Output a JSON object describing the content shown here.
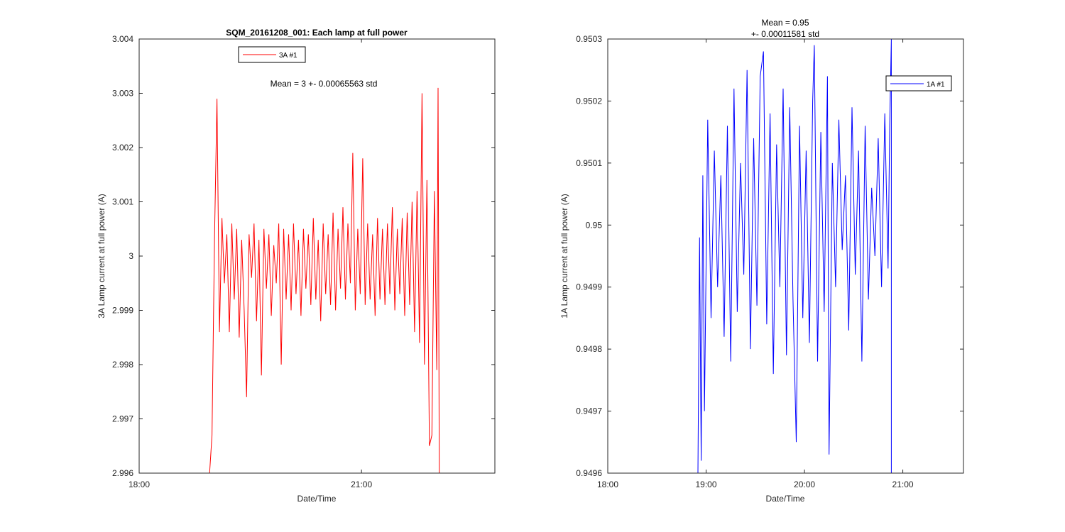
{
  "chart_data": [
    {
      "type": "line",
      "title": "SQM_20161208_001: Each lamp at full power",
      "xlabel": "Date/Time",
      "ylabel": "3A Lamp current at full power (A)",
      "xlim": [
        "18:00",
        "22:48"
      ],
      "ylim": [
        2.996,
        3.004
      ],
      "xticks": [
        "18:00",
        "21:00"
      ],
      "yticks": [
        "2.996",
        "2.997",
        "2.998",
        "2.999",
        "3",
        "3.001",
        "3.002",
        "3.003",
        "3.004"
      ],
      "annotation": "Mean = 3 +- 0.00065563 std",
      "legend_position": "top-left",
      "grid": false,
      "series": [
        {
          "name": "3A #1",
          "color": "#ff0000",
          "points": [
            [
              "18:57",
              2.996
            ],
            [
              "18:59",
              2.9967
            ],
            [
              "19:01",
              3.0003
            ],
            [
              "19:03",
              3.0029
            ],
            [
              "19:05",
              2.9986
            ],
            [
              "19:07",
              3.0007
            ],
            [
              "19:09",
              2.9995
            ],
            [
              "19:11",
              3.0004
            ],
            [
              "19:13",
              2.9986
            ],
            [
              "19:15",
              3.0006
            ],
            [
              "19:17",
              2.9992
            ],
            [
              "19:19",
              3.0005
            ],
            [
              "19:21",
              2.9985
            ],
            [
              "19:23",
              3.0003
            ],
            [
              "19:25",
              2.999
            ],
            [
              "19:27",
              2.9974
            ],
            [
              "19:29",
              3.0004
            ],
            [
              "19:31",
              2.9996
            ],
            [
              "19:33",
              3.0006
            ],
            [
              "19:35",
              2.9988
            ],
            [
              "19:37",
              3.0003
            ],
            [
              "19:39",
              2.9978
            ],
            [
              "19:41",
              3.0005
            ],
            [
              "19:43",
              2.9994
            ],
            [
              "19:45",
              3.0004
            ],
            [
              "19:47",
              2.9989
            ],
            [
              "19:49",
              3.0002
            ],
            [
              "19:51",
              2.9995
            ],
            [
              "19:53",
              3.0006
            ],
            [
              "19:55",
              2.998
            ],
            [
              "19:57",
              3.0005
            ],
            [
              "19:59",
              2.9992
            ],
            [
              "20:01",
              3.0004
            ],
            [
              "20:03",
              2.999
            ],
            [
              "20:05",
              3.0006
            ],
            [
              "20:07",
              2.9993
            ],
            [
              "20:09",
              3.0003
            ],
            [
              "20:11",
              2.9989
            ],
            [
              "20:13",
              3.0005
            ],
            [
              "20:15",
              2.9994
            ],
            [
              "20:17",
              3.0004
            ],
            [
              "20:19",
              2.9991
            ],
            [
              "20:21",
              3.0007
            ],
            [
              "20:23",
              2.9992
            ],
            [
              "20:25",
              3.0003
            ],
            [
              "20:27",
              2.9988
            ],
            [
              "20:29",
              3.0006
            ],
            [
              "20:31",
              2.9993
            ],
            [
              "20:33",
              3.0004
            ],
            [
              "20:35",
              2.9991
            ],
            [
              "20:37",
              3.0008
            ],
            [
              "20:39",
              2.999
            ],
            [
              "20:41",
              3.0005
            ],
            [
              "20:43",
              2.9994
            ],
            [
              "20:45",
              3.0009
            ],
            [
              "20:47",
              2.9992
            ],
            [
              "20:49",
              3.0006
            ],
            [
              "20:51",
              2.9995
            ],
            [
              "20:53",
              3.0019
            ],
            [
              "20:55",
              2.999
            ],
            [
              "20:57",
              3.0005
            ],
            [
              "20:59",
              2.9993
            ],
            [
              "21:01",
              3.0018
            ],
            [
              "21:03",
              2.9991
            ],
            [
              "21:05",
              3.0006
            ],
            [
              "21:07",
              2.9992
            ],
            [
              "21:09",
              3.0004
            ],
            [
              "21:11",
              2.9989
            ],
            [
              "21:13",
              3.0007
            ],
            [
              "21:15",
              2.9992
            ],
            [
              "21:17",
              3.0005
            ],
            [
              "21:19",
              2.9991
            ],
            [
              "21:21",
              3.0006
            ],
            [
              "21:23",
              2.9993
            ],
            [
              "21:25",
              3.0009
            ],
            [
              "21:27",
              2.999
            ],
            [
              "21:29",
              3.0005
            ],
            [
              "21:31",
              2.9993
            ],
            [
              "21:33",
              3.0007
            ],
            [
              "21:35",
              2.9989
            ],
            [
              "21:37",
              3.0008
            ],
            [
              "21:39",
              2.9991
            ],
            [
              "21:41",
              3.001
            ],
            [
              "21:43",
              2.9986
            ],
            [
              "21:45",
              3.0012
            ],
            [
              "21:47",
              2.9984
            ],
            [
              "21:49",
              3.003
            ],
            [
              "21:51",
              2.998
            ],
            [
              "21:53",
              3.0014
            ],
            [
              "21:55",
              2.9965
            ],
            [
              "21:57",
              2.9967
            ],
            [
              "21:59",
              3.0012
            ],
            [
              "22:01",
              2.9979
            ],
            [
              "22:02",
              3.0031
            ],
            [
              "22:03",
              2.996
            ]
          ]
        }
      ]
    },
    {
      "type": "line",
      "title": "Mean = 0.95\n+- 0.00011581 std",
      "title_lines": [
        "Mean = 0.95",
        "+- 0.00011581 std"
      ],
      "xlabel": "Date/Time",
      "ylabel": "1A Lamp current at full power (A)",
      "xlim": [
        "18:00",
        "21:37"
      ],
      "ylim": [
        0.9496,
        0.9503
      ],
      "xticks": [
        "18:00",
        "19:00",
        "20:00",
        "21:00"
      ],
      "yticks": [
        "0.9496",
        "0.9497",
        "0.9498",
        "0.9499",
        "0.95",
        "0.9501",
        "0.9502",
        "0.9503"
      ],
      "legend_position": "top-right",
      "grid": false,
      "series": [
        {
          "name": "1A #1",
          "color": "#0000ff",
          "points": [
            [
              "18:55",
              0.9496
            ],
            [
              "18:56",
              0.94998
            ],
            [
              "18:57",
              0.94962
            ],
            [
              "18:58",
              0.95008
            ],
            [
              "18:59",
              0.9497
            ],
            [
              "19:01",
              0.95017
            ],
            [
              "19:03",
              0.94985
            ],
            [
              "19:05",
              0.95012
            ],
            [
              "19:07",
              0.9499
            ],
            [
              "19:09",
              0.95008
            ],
            [
              "19:11",
              0.94982
            ],
            [
              "19:13",
              0.95016
            ],
            [
              "19:15",
              0.94978
            ],
            [
              "19:17",
              0.95022
            ],
            [
              "19:19",
              0.94986
            ],
            [
              "19:21",
              0.9501
            ],
            [
              "19:23",
              0.94992
            ],
            [
              "19:25",
              0.95025
            ],
            [
              "19:27",
              0.9498
            ],
            [
              "19:29",
              0.95014
            ],
            [
              "19:31",
              0.94987
            ],
            [
              "19:33",
              0.95024
            ],
            [
              "19:35",
              0.95028
            ],
            [
              "19:37",
              0.94984
            ],
            [
              "19:39",
              0.95018
            ],
            [
              "19:41",
              0.94976
            ],
            [
              "19:43",
              0.95013
            ],
            [
              "19:45",
              0.9499
            ],
            [
              "19:47",
              0.95022
            ],
            [
              "19:49",
              0.94979
            ],
            [
              "19:51",
              0.95019
            ],
            [
              "19:53",
              0.94988
            ],
            [
              "19:55",
              0.94965
            ],
            [
              "19:57",
              0.95016
            ],
            [
              "19:59",
              0.94985
            ],
            [
              "20:01",
              0.95012
            ],
            [
              "20:03",
              0.94981
            ],
            [
              "20:05",
              0.9502
            ],
            [
              "20:06",
              0.95029
            ],
            [
              "20:08",
              0.94978
            ],
            [
              "20:10",
              0.95015
            ],
            [
              "20:12",
              0.94986
            ],
            [
              "20:14",
              0.95024
            ],
            [
              "20:15",
              0.94963
            ],
            [
              "20:17",
              0.9501
            ],
            [
              "20:19",
              0.9499
            ],
            [
              "20:21",
              0.95017
            ],
            [
              "20:23",
              0.94996
            ],
            [
              "20:25",
              0.95008
            ],
            [
              "20:27",
              0.94983
            ],
            [
              "20:29",
              0.95019
            ],
            [
              "20:31",
              0.94992
            ],
            [
              "20:33",
              0.95012
            ],
            [
              "20:35",
              0.94978
            ],
            [
              "20:37",
              0.95016
            ],
            [
              "20:39",
              0.94988
            ],
            [
              "20:41",
              0.95006
            ],
            [
              "20:43",
              0.94995
            ],
            [
              "20:45",
              0.95014
            ],
            [
              "20:47",
              0.9499
            ],
            [
              "20:49",
              0.95018
            ],
            [
              "20:51",
              0.94993
            ],
            [
              "20:52",
              0.95016
            ],
            [
              "20:53",
              0.9503
            ],
            [
              "20:53",
              0.9496
            ]
          ]
        }
      ]
    }
  ]
}
